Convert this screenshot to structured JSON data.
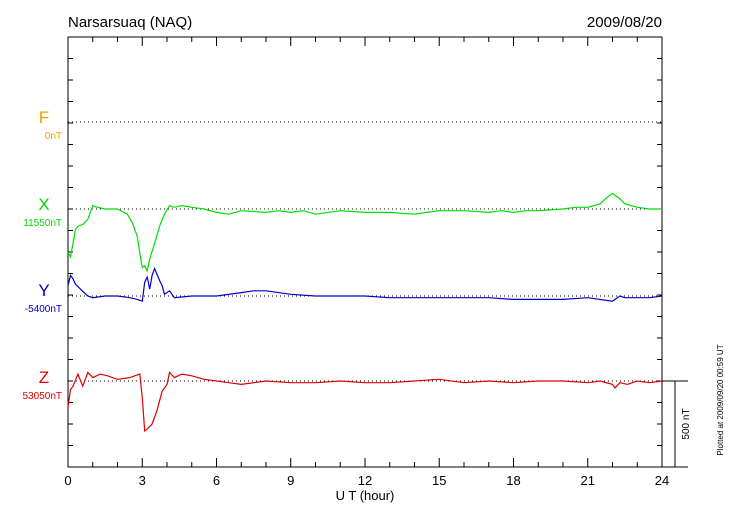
{
  "header": {
    "station": "Narsarsuaq (NAQ)",
    "date": "2009/08/20"
  },
  "footnote": "Plotted at 2009/09/20 00:59 UT",
  "scale_bar": {
    "label": "500 nT",
    "value_nT": 500
  },
  "colors": {
    "F": "#f0a000",
    "X": "#00dd00",
    "Y": "#0000cc",
    "Z": "#dd0000",
    "frame": "#000000",
    "grid": "#000000"
  },
  "chart_data": {
    "type": "line",
    "title": "Narsarsuaq (NAQ)",
    "xlabel": "U T (hour)",
    "xlim": [
      0,
      24
    ],
    "xticks": [
      0,
      3,
      6,
      9,
      12,
      15,
      18,
      21,
      24
    ],
    "grid": "dotted horizontal baselines",
    "units": "nT",
    "series": [
      {
        "name": "F",
        "baseline_label": "0nT",
        "values": []
      },
      {
        "name": "X",
        "baseline_label": "11550nT",
        "x": [
          0,
          0.1,
          0.2,
          0.3,
          0.4,
          0.6,
          0.8,
          1.0,
          1.2,
          1.5,
          2.0,
          2.4,
          2.6,
          2.8,
          2.95,
          3.0,
          3.1,
          3.2,
          3.3,
          3.5,
          3.7,
          3.9,
          4.1,
          4.3,
          4.6,
          5.0,
          5.5,
          6,
          6.5,
          7,
          8,
          8.5,
          9,
          9.5,
          10,
          11,
          12,
          13,
          14,
          14.5,
          15,
          16,
          17,
          17.5,
          18,
          18.5,
          19,
          20,
          20.5,
          21,
          21.5,
          21.8,
          22,
          22.3,
          22.5,
          23,
          23.5,
          24
        ],
        "values": [
          -250,
          -280,
          -200,
          -120,
          -100,
          -90,
          -60,
          20,
          10,
          0,
          0,
          -30,
          -80,
          -160,
          -300,
          -340,
          -330,
          -360,
          -290,
          -200,
          -100,
          -30,
          20,
          10,
          20,
          10,
          0,
          -20,
          -30,
          -10,
          -20,
          -10,
          -20,
          -10,
          -30,
          -10,
          -20,
          -20,
          -30,
          -20,
          -10,
          -10,
          -20,
          -10,
          -20,
          -10,
          -10,
          0,
          10,
          10,
          30,
          70,
          90,
          60,
          30,
          10,
          0,
          0
        ]
      },
      {
        "name": "Y",
        "baseline_label": "-5400nT",
        "x": [
          0,
          0.1,
          0.2,
          0.3,
          0.5,
          0.8,
          1.0,
          1.5,
          2.0,
          2.5,
          2.8,
          3.0,
          3.1,
          3.2,
          3.3,
          3.4,
          3.5,
          3.7,
          3.8,
          3.9,
          4.1,
          4.3,
          5,
          6,
          7,
          7.5,
          8,
          9,
          10,
          11,
          12,
          13,
          14,
          15,
          16,
          17,
          18,
          19,
          20,
          21,
          22,
          22.1,
          22.3,
          22.5,
          23,
          23.5,
          24
        ],
        "values": [
          60,
          120,
          100,
          70,
          40,
          0,
          -10,
          0,
          0,
          -10,
          -20,
          -30,
          80,
          110,
          40,
          120,
          160,
          90,
          60,
          10,
          30,
          -10,
          0,
          0,
          20,
          30,
          30,
          10,
          0,
          0,
          0,
          -10,
          -10,
          -10,
          -10,
          -10,
          -20,
          -20,
          -20,
          -10,
          -30,
          -20,
          0,
          -10,
          -10,
          -10,
          0
        ]
      },
      {
        "name": "Z",
        "baseline_label": "53050nT",
        "x": [
          0,
          0.1,
          0.2,
          0.4,
          0.6,
          0.8,
          1.0,
          1.3,
          1.6,
          2.0,
          2.5,
          2.9,
          3.0,
          3.1,
          3.2,
          3.4,
          3.6,
          3.8,
          4.0,
          4.1,
          4.3,
          4.6,
          5,
          5.5,
          6,
          6.5,
          7,
          8,
          9,
          10,
          11,
          12,
          13,
          14,
          15,
          16,
          17,
          18,
          19,
          20,
          21,
          21.5,
          22,
          22.1,
          22.3,
          22.6,
          23,
          23.5,
          24
        ],
        "values": [
          -150,
          -50,
          -30,
          40,
          -30,
          50,
          20,
          40,
          30,
          10,
          20,
          40,
          -100,
          -290,
          -280,
          -250,
          -170,
          -60,
          -20,
          50,
          20,
          40,
          30,
          10,
          0,
          -10,
          -20,
          0,
          -10,
          -10,
          0,
          -10,
          -10,
          0,
          10,
          -10,
          0,
          -10,
          0,
          0,
          -10,
          0,
          -20,
          -40,
          -10,
          -20,
          0,
          -10,
          0
        ]
      }
    ],
    "annotations": [
      "500 nT"
    ]
  }
}
